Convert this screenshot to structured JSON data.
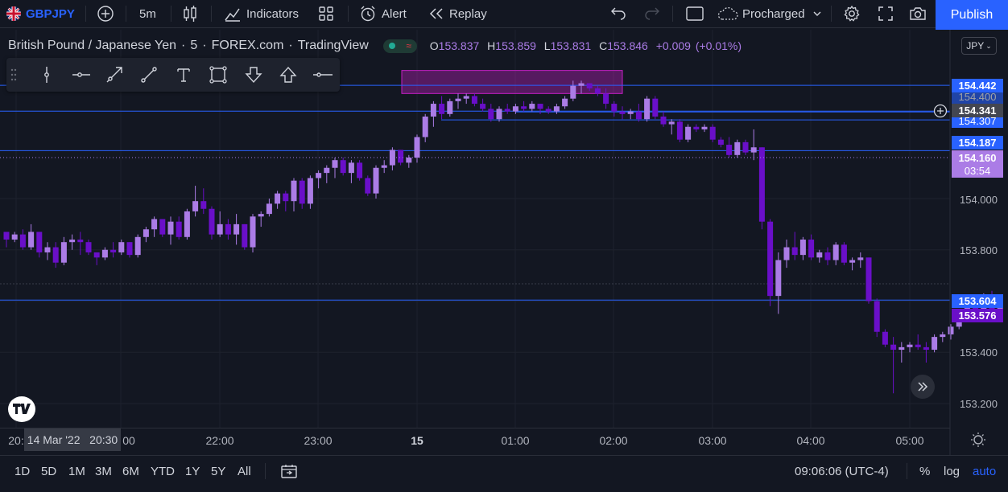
{
  "toolbar": {
    "symbol": "GBPJPY",
    "interval": "5m",
    "indicators_label": "Indicators",
    "alert_label": "Alert",
    "replay_label": "Replay",
    "layout_name": "Procharged",
    "publish_label": "Publish"
  },
  "legend": {
    "title": "British Pound / Japanese Yen",
    "interval": "5",
    "exchange": "FOREX.com",
    "source": "TradingView",
    "open_label": "O",
    "open": "153.837",
    "high_label": "H",
    "high": "153.859",
    "low_label": "L",
    "low": "153.831",
    "close_label": "C",
    "close": "153.846",
    "change": "+0.009",
    "change_pct": "(+0.01%)"
  },
  "currency": "JPY",
  "price_labels": {
    "p1": "154.442",
    "p1_under": "154.400",
    "p2": "154.341",
    "p2_under": "154.307",
    "p3": "154.187",
    "current": "154.160",
    "countdown": "03:54",
    "p4": "153.604",
    "p5": "153.576"
  },
  "price_ticks": [
    "154.000",
    "153.800",
    "153.600",
    "153.400",
    "153.200"
  ],
  "time_axis": {
    "ticks": [
      "20:",
      "22:00",
      "23:00",
      "15",
      "01:00",
      "02:00",
      "03:00",
      "04:00",
      "05:00"
    ],
    "crosshair_label": "14 Mar '22   20:30",
    "crosshair_suffix": "00"
  },
  "bottom": {
    "ranges": [
      "1D",
      "5D",
      "1M",
      "3M",
      "6M",
      "YTD",
      "1Y",
      "5Y",
      "All"
    ],
    "clock": "09:06:06 (UTC-4)",
    "percent": "%",
    "log": "log",
    "auto": "auto"
  },
  "colors": {
    "background": "#131722",
    "up_candle": "#ab7ce6",
    "down_candle": "#6a0fc9",
    "hline": "#2962ff",
    "box": "#c41fc4",
    "accent": "#2962ff"
  },
  "chart_data": {
    "type": "candlestick",
    "symbol": "GBPJPY",
    "ylim": [
      153.1,
      154.62
    ],
    "candles": [
      [
        153.87,
        153.87,
        153.81,
        153.84
      ],
      [
        153.84,
        153.87,
        153.83,
        153.86
      ],
      [
        153.86,
        153.88,
        153.8,
        153.81
      ],
      [
        153.81,
        153.9,
        153.8,
        153.87
      ],
      [
        153.87,
        153.87,
        153.77,
        153.79
      ],
      [
        153.79,
        153.83,
        153.76,
        153.81
      ],
      [
        153.81,
        153.83,
        153.73,
        153.75
      ],
      [
        153.75,
        153.85,
        153.74,
        153.83
      ],
      [
        153.83,
        153.86,
        153.8,
        153.84
      ],
      [
        153.84,
        153.87,
        153.78,
        153.83
      ],
      [
        153.83,
        153.84,
        153.78,
        153.79
      ],
      [
        153.79,
        153.79,
        153.74,
        153.77
      ],
      [
        153.77,
        153.81,
        153.76,
        153.8
      ],
      [
        153.8,
        153.83,
        153.77,
        153.79
      ],
      [
        153.79,
        153.84,
        153.78,
        153.83
      ],
      [
        153.83,
        153.83,
        153.77,
        153.78
      ],
      [
        153.78,
        153.86,
        153.77,
        153.85
      ],
      [
        153.85,
        153.89,
        153.83,
        153.88
      ],
      [
        153.88,
        153.93,
        153.85,
        153.92
      ],
      [
        153.92,
        153.92,
        153.85,
        153.86
      ],
      [
        153.86,
        153.93,
        153.82,
        153.91
      ],
      [
        153.91,
        153.93,
        153.84,
        153.85
      ],
      [
        153.85,
        153.96,
        153.84,
        153.95
      ],
      [
        153.95,
        154.05,
        153.93,
        153.99
      ],
      [
        153.99,
        154.04,
        153.94,
        153.96
      ],
      [
        153.96,
        153.97,
        153.84,
        153.86
      ],
      [
        153.86,
        153.95,
        153.85,
        153.9
      ],
      [
        153.9,
        153.92,
        153.84,
        153.86
      ],
      [
        153.86,
        153.94,
        153.82,
        153.9
      ],
      [
        153.9,
        153.9,
        153.8,
        153.81
      ],
      [
        153.81,
        153.94,
        153.79,
        153.93
      ],
      [
        153.93,
        153.95,
        153.89,
        153.94
      ],
      [
        153.94,
        154.0,
        153.93,
        153.98
      ],
      [
        153.98,
        154.03,
        153.96,
        154.02
      ],
      [
        154.02,
        154.03,
        153.95,
        153.99
      ],
      [
        153.99,
        154.08,
        153.95,
        154.07
      ],
      [
        154.07,
        154.08,
        153.96,
        153.98
      ],
      [
        153.98,
        154.09,
        153.96,
        154.08
      ],
      [
        154.08,
        154.11,
        154.04,
        154.1
      ],
      [
        154.1,
        154.13,
        154.06,
        154.12
      ],
      [
        154.12,
        154.16,
        154.08,
        154.15
      ],
      [
        154.15,
        154.16,
        154.09,
        154.1
      ],
      [
        154.1,
        154.15,
        154.06,
        154.14
      ],
      [
        154.14,
        154.15,
        154.07,
        154.08
      ],
      [
        154.08,
        154.09,
        154.01,
        154.02
      ],
      [
        154.02,
        154.13,
        154.0,
        154.12
      ],
      [
        154.12,
        154.15,
        154.1,
        154.13
      ],
      [
        154.13,
        154.2,
        154.11,
        154.19
      ],
      [
        154.19,
        154.19,
        154.13,
        154.14
      ],
      [
        154.14,
        154.17,
        154.12,
        154.16
      ],
      [
        154.16,
        154.25,
        154.14,
        154.24
      ],
      [
        154.24,
        154.33,
        154.22,
        154.32
      ],
      [
        154.32,
        154.38,
        154.28,
        154.37
      ],
      [
        154.37,
        154.4,
        154.31,
        154.33
      ],
      [
        154.33,
        154.39,
        154.32,
        154.38
      ],
      [
        154.38,
        154.41,
        154.35,
        154.39
      ],
      [
        154.39,
        154.41,
        154.37,
        154.4
      ],
      [
        154.4,
        154.41,
        154.36,
        154.37
      ],
      [
        154.37,
        154.39,
        154.34,
        154.35
      ],
      [
        154.35,
        154.37,
        154.3,
        154.31
      ],
      [
        154.31,
        154.36,
        154.3,
        154.35
      ],
      [
        154.35,
        154.37,
        154.33,
        154.34
      ],
      [
        154.34,
        154.37,
        154.33,
        154.36
      ],
      [
        154.36,
        154.38,
        154.34,
        154.35
      ],
      [
        154.35,
        154.38,
        154.34,
        154.37
      ],
      [
        154.37,
        154.37,
        154.33,
        154.35
      ],
      [
        154.35,
        154.36,
        154.33,
        154.34
      ],
      [
        154.34,
        154.37,
        154.33,
        154.36
      ],
      [
        154.36,
        154.4,
        154.35,
        154.39
      ],
      [
        154.39,
        154.46,
        154.38,
        154.44
      ],
      [
        154.44,
        154.46,
        154.41,
        154.45
      ],
      [
        154.45,
        154.45,
        154.42,
        154.43
      ],
      [
        154.43,
        154.44,
        154.4,
        154.41
      ],
      [
        154.41,
        154.43,
        154.35,
        154.37
      ],
      [
        154.37,
        154.38,
        154.32,
        154.34
      ],
      [
        154.34,
        154.36,
        154.31,
        154.33
      ],
      [
        154.33,
        154.35,
        154.31,
        154.34
      ],
      [
        154.34,
        154.37,
        154.3,
        154.31
      ],
      [
        154.31,
        154.4,
        154.3,
        154.39
      ],
      [
        154.39,
        154.4,
        154.31,
        154.32
      ],
      [
        154.32,
        154.34,
        154.28,
        154.29
      ],
      [
        154.29,
        154.31,
        154.25,
        154.3
      ],
      [
        154.3,
        154.31,
        154.22,
        154.23
      ],
      [
        154.23,
        154.29,
        154.22,
        154.28
      ],
      [
        154.28,
        154.29,
        154.26,
        154.27
      ],
      [
        154.27,
        154.29,
        154.26,
        154.28
      ],
      [
        154.28,
        154.29,
        154.22,
        154.23
      ],
      [
        154.23,
        154.24,
        154.2,
        154.21
      ],
      [
        154.21,
        154.24,
        154.16,
        154.17
      ],
      [
        154.17,
        154.23,
        154.16,
        154.22
      ],
      [
        154.22,
        154.23,
        154.17,
        154.18
      ],
      [
        154.18,
        154.27,
        154.15,
        154.2
      ],
      [
        154.2,
        154.2,
        153.88,
        153.91
      ],
      [
        153.91,
        153.92,
        153.58,
        153.62
      ],
      [
        153.62,
        153.79,
        153.55,
        153.76
      ],
      [
        153.76,
        153.84,
        153.73,
        153.81
      ],
      [
        153.81,
        153.87,
        153.76,
        153.78
      ],
      [
        153.78,
        153.85,
        153.76,
        153.84
      ],
      [
        153.84,
        153.86,
        153.76,
        153.77
      ],
      [
        153.77,
        153.8,
        153.75,
        153.79
      ],
      [
        153.79,
        153.81,
        153.74,
        153.76
      ],
      [
        153.76,
        153.83,
        153.74,
        153.82
      ],
      [
        153.82,
        153.83,
        153.74,
        153.75
      ],
      [
        153.75,
        153.77,
        153.72,
        153.76
      ],
      [
        153.76,
        153.79,
        153.73,
        153.77
      ],
      [
        153.77,
        153.77,
        153.59,
        153.6
      ],
      [
        153.6,
        153.61,
        153.46,
        153.48
      ],
      [
        153.48,
        153.49,
        153.42,
        153.43
      ],
      [
        153.43,
        153.46,
        153.24,
        153.41
      ],
      [
        153.41,
        153.44,
        153.36,
        153.42
      ],
      [
        153.42,
        153.44,
        153.4,
        153.43
      ],
      [
        153.43,
        153.47,
        153.41,
        153.42
      ],
      [
        153.42,
        153.44,
        153.36,
        153.41
      ],
      [
        153.41,
        153.47,
        153.4,
        153.46
      ],
      [
        153.46,
        153.48,
        153.44,
        153.47
      ],
      [
        153.47,
        153.51,
        153.45,
        153.5
      ],
      [
        153.5,
        153.56,
        153.49,
        153.54
      ],
      [
        153.54,
        153.6,
        153.52,
        153.58
      ],
      [
        153.58,
        153.61,
        153.54,
        153.56
      ],
      [
        153.56,
        153.63,
        153.55,
        153.62
      ],
      [
        153.62,
        153.64,
        153.56,
        153.57
      ],
      [
        153.57,
        153.6,
        153.55,
        153.58
      ]
    ],
    "horizontal_lines": [
      154.442,
      154.341,
      154.187,
      153.604
    ],
    "short_lines": [
      154.307
    ],
    "box": {
      "top": 154.5,
      "bottom": 154.41
    },
    "time_ticks": [
      "20:",
      "22:00",
      "23:00",
      "15",
      "01:00",
      "02:00",
      "03:00",
      "04:00",
      "05:00"
    ],
    "price_ticks": [
      154.0,
      153.8,
      153.6,
      153.4,
      153.2
    ],
    "last_price": 154.16
  }
}
